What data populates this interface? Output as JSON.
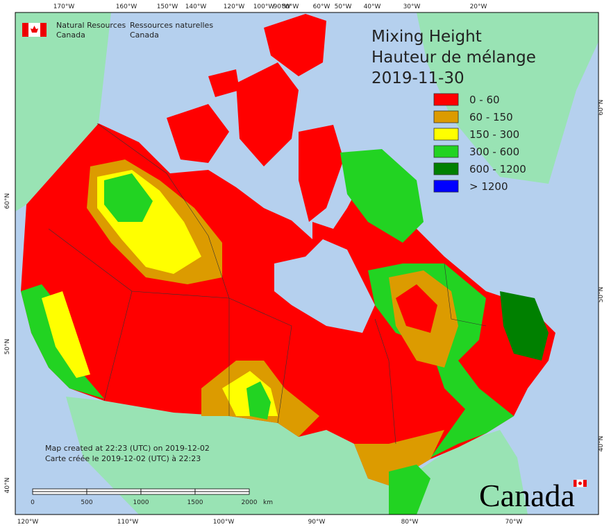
{
  "agency": {
    "en_line1": "Natural Resources",
    "en_line2": "Canada",
    "fr_line1": "Ressources naturelles",
    "fr_line2": "Canada"
  },
  "title": {
    "line1": "Mixing Height",
    "line2": "Hauteur de mélange",
    "date": "2019-11-30"
  },
  "legend": [
    {
      "label": "0 - 60",
      "color": "#ff0000"
    },
    {
      "label": "60 - 150",
      "color": "#dc9b00"
    },
    {
      "label": "150 - 300",
      "color": "#ffff00"
    },
    {
      "label": "300 - 600",
      "color": "#22d322"
    },
    {
      "label": "600 - 1200",
      "color": "#008000"
    },
    {
      "label": "> 1200",
      "color": "#0000ff"
    }
  ],
  "footer_note": {
    "line1": "Map created at 22:23 (UTC) on 2019-12-02",
    "line2": "Carte créée le 2019-12-02 (UTC) à 22:23"
  },
  "scale_bar": {
    "labels": [
      "0",
      "500",
      "1000",
      "1500",
      "2000"
    ],
    "unit": "km"
  },
  "graticule": {
    "top": [
      "170°W",
      "160°W",
      "150°W",
      "140°W",
      "120°W",
      "100°W",
      "90°W",
      "80°W",
      "60°W",
      "50°W",
      "40°W",
      "30°W",
      "20°W"
    ],
    "bottom": [
      "120°W",
      "110°W",
      "100°W",
      "90°W",
      "80°W",
      "70°W"
    ],
    "left": [
      "60°N",
      "50°N",
      "40°N"
    ],
    "right": [
      "60°N",
      "50°N",
      "40°N"
    ]
  },
  "wordmark": "Canada"
}
